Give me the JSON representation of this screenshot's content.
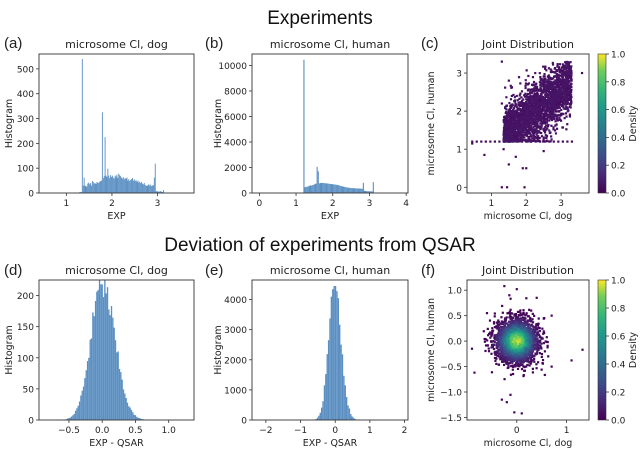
{
  "figure": {
    "section_titles": [
      "Experiments",
      "Deviation of experiments from QSAR"
    ]
  },
  "chart_data": [
    {
      "id": "a",
      "panel_label": "(a)",
      "type": "bar",
      "subtype": "histogram",
      "title": "microsome Cl, dog",
      "xlabel": "EXP",
      "ylabel": "Histogram",
      "xlim": [
        0.4,
        3.8
      ],
      "ylim": [
        0,
        560
      ],
      "xticks": [
        1,
        2,
        3
      ],
      "yticks": [
        0,
        100,
        200,
        300,
        400,
        500
      ],
      "color": "#5b8fc2",
      "bins": {
        "start": 1.28,
        "width": 0.02,
        "values": [
          3,
          4,
          3,
          540,
          30,
          62,
          28,
          30,
          25,
          38,
          42,
          35,
          40,
          30,
          48,
          45,
          38,
          40,
          36,
          44,
          42,
          40,
          45,
          48,
          50,
          325,
          60,
          68,
          225,
          70,
          65,
          98,
          70,
          60,
          72,
          65,
          70,
          62,
          58,
          70,
          66,
          74,
          60,
          78,
          72,
          68,
          62,
          58,
          64,
          55,
          60,
          58,
          62,
          50,
          56,
          48,
          52,
          56,
          60,
          50,
          55,
          48,
          52,
          45,
          50,
          42,
          46,
          40,
          44,
          38,
          35,
          40,
          32,
          30,
          28,
          32,
          35,
          30,
          34,
          28,
          30,
          32,
          62,
          118,
          8,
          6,
          7,
          5,
          6,
          8,
          5,
          4,
          12
        ]
      }
    },
    {
      "id": "b",
      "panel_label": "(b)",
      "type": "bar",
      "subtype": "histogram",
      "title": "microsome Cl, human",
      "xlabel": "EXP",
      "ylabel": "Histogram",
      "xlim": [
        -0.2,
        4.05
      ],
      "ylim": [
        0,
        10900
      ],
      "xticks": [
        0,
        1,
        2,
        3,
        4
      ],
      "yticks": [
        0,
        2000,
        4000,
        6000,
        8000,
        10000
      ],
      "color": "#5b8fc2",
      "bins": {
        "start": 1.2,
        "width": 0.03,
        "values": [
          10450,
          450,
          480,
          500,
          520,
          560,
          600,
          580,
          620,
          650,
          700,
          740,
          2050,
          1700,
          760,
          780,
          800,
          780,
          790,
          770,
          760,
          750,
          740,
          720,
          710,
          700,
          690,
          680,
          670,
          650,
          640,
          620,
          600,
          560,
          540,
          520,
          500,
          480,
          460,
          440,
          420,
          410,
          400,
          390,
          380,
          380,
          370,
          370,
          360,
          360,
          350,
          350,
          340,
          340,
          800,
          180,
          160,
          150,
          140,
          140,
          130,
          130,
          130,
          850
        ]
      }
    },
    {
      "id": "c",
      "panel_label": "(c)",
      "type": "heatmap",
      "subtype": "2d-histogram",
      "title": "Joint Distribution",
      "xlabel": "microsome Cl, dog",
      "ylabel": "microsome Cl, human",
      "xlim": [
        0.3,
        3.8
      ],
      "ylim": [
        -0.15,
        3.5
      ],
      "xticks": [
        1,
        2,
        3
      ],
      "yticks": [
        0,
        1,
        2,
        3
      ],
      "colorbar": {
        "label": "Density",
        "range": [
          0.0,
          1.0
        ],
        "ticks": [
          "0.0",
          "0.2",
          "0.4",
          "0.6",
          "0.8",
          "1.0"
        ],
        "colormap": "viridis"
      },
      "density_peak": 0.1,
      "points": {
        "n": 2400,
        "x_range": [
          1.35,
          3.3
        ],
        "y_floor": 1.2,
        "correlation": 0.7,
        "outliers": [
          [
            1.3,
            3.3
          ],
          [
            1.5,
            2.8
          ],
          [
            1.3,
            2.2
          ],
          [
            0.45,
            1.15
          ],
          [
            0.8,
            0.85
          ],
          [
            1.3,
            0.0
          ],
          [
            1.45,
            0.0
          ],
          [
            1.95,
            0.0
          ],
          [
            1.9,
            0.5
          ],
          [
            2.0,
            0.5
          ],
          [
            1.5,
            0.6
          ],
          [
            2.5,
            0.95
          ],
          [
            3.6,
            3.0
          ],
          [
            1.35,
            1.0
          ],
          [
            1.7,
            0.8
          ]
        ]
      }
    },
    {
      "id": "d",
      "panel_label": "(d)",
      "type": "bar",
      "subtype": "histogram",
      "title": "microsome Cl, dog",
      "xlabel": "EXP - QSAR",
      "ylabel": "Histogram",
      "xlim": [
        -0.95,
        1.38
      ],
      "ylim": [
        0,
        225
      ],
      "xticks": [
        -0.5,
        0.0,
        0.5,
        1.0
      ],
      "xtick_labels": [
        "−0.5",
        "0.0",
        "0.5",
        "1.0"
      ],
      "yticks": [
        0,
        50,
        100,
        150,
        200
      ],
      "color": "#5b8fc2",
      "distribution": {
        "center": 0.0,
        "sigma": 0.17,
        "peak": 218,
        "bin_width": 0.02,
        "range": [
          -0.65,
          0.85
        ]
      }
    },
    {
      "id": "e",
      "panel_label": "(e)",
      "type": "bar",
      "subtype": "histogram",
      "title": "microsome Cl, human",
      "xlabel": "EXP - QSAR",
      "ylabel": "Histogram",
      "xlim": [
        -2.4,
        2.1
      ],
      "ylim": [
        0,
        4650
      ],
      "xticks": [
        -2,
        -1,
        0,
        1,
        2
      ],
      "xtick_labels": [
        "−2",
        "−1",
        "0",
        "1",
        "2"
      ],
      "yticks": [
        0,
        1000,
        2000,
        3000,
        4000
      ],
      "color": "#5b8fc2",
      "distribution": {
        "center": -0.02,
        "sigma": 0.17,
        "peak": 4450,
        "bin_width": 0.04,
        "range": [
          -0.65,
          0.75
        ]
      }
    },
    {
      "id": "f",
      "panel_label": "(f)",
      "type": "heatmap",
      "subtype": "2d-histogram",
      "title": "Joint Distribution",
      "xlabel": "microsome Cl, dog",
      "ylabel": "microsome Cl, human",
      "xlim": [
        -1.0,
        1.45
      ],
      "ylim": [
        -1.55,
        1.2
      ],
      "xticks": [
        0,
        1
      ],
      "yticks": [
        -1.5,
        -1.0,
        -0.5,
        0.0,
        0.5,
        1.0
      ],
      "ytick_labels": [
        "−1.5",
        "−1.0",
        "−0.5",
        "0.0",
        "0.5",
        "1.0"
      ],
      "colorbar": {
        "label": "Density",
        "range": [
          0.0,
          1.0
        ],
        "ticks": [
          "0.0",
          "0.2",
          "0.4",
          "0.6",
          "0.8",
          "1.0"
        ],
        "colormap": "viridis"
      },
      "density_peak": 0.9,
      "points": {
        "n": 2200,
        "center": [
          0.0,
          0.0
        ],
        "sigma": [
          0.22,
          0.22
        ],
        "outliers": [
          [
            -0.25,
            1.08
          ],
          [
            0.0,
            1.02
          ],
          [
            -0.15,
            0.9
          ],
          [
            0.4,
            0.85
          ],
          [
            1.32,
            -0.17
          ],
          [
            1.1,
            -0.38
          ],
          [
            -0.85,
            -0.62
          ],
          [
            -0.3,
            -1.15
          ],
          [
            -0.2,
            -1.2
          ],
          [
            -0.05,
            -1.4
          ],
          [
            0.1,
            -1.42
          ],
          [
            -0.9,
            -0.15
          ],
          [
            0.7,
            0.5
          ]
        ]
      }
    }
  ]
}
